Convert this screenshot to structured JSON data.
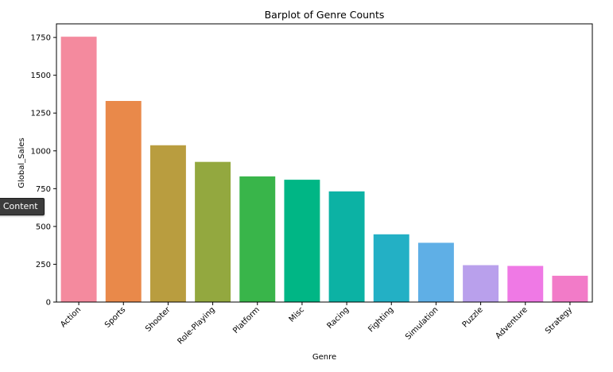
{
  "tooltip": {
    "text": "k Content"
  },
  "chart_data": {
    "type": "bar",
    "title": "Barplot of Genre Counts",
    "xlabel": "Genre",
    "ylabel": "Global_Sales",
    "categories": [
      "Action",
      "Sports",
      "Shooter",
      "Role-Playing",
      "Platform",
      "Misc",
      "Racing",
      "Fighting",
      "Simulation",
      "Puzzle",
      "Adventure",
      "Strategy"
    ],
    "values": [
      1755,
      1330,
      1037,
      927,
      831,
      809,
      732,
      448,
      392,
      244,
      239,
      174
    ],
    "colors": [
      "#f48a9e",
      "#e9894a",
      "#b99d3f",
      "#93a83f",
      "#39b54a",
      "#00b685",
      "#0cb2a4",
      "#23b0c5",
      "#5fafe6",
      "#b9a0ec",
      "#ef79e5",
      "#f27bc8"
    ],
    "yticks": [
      0,
      250,
      500,
      750,
      1000,
      1250,
      1500,
      1750
    ],
    "ylim": [
      0,
      1840
    ],
    "grid": false,
    "legend": "none"
  }
}
